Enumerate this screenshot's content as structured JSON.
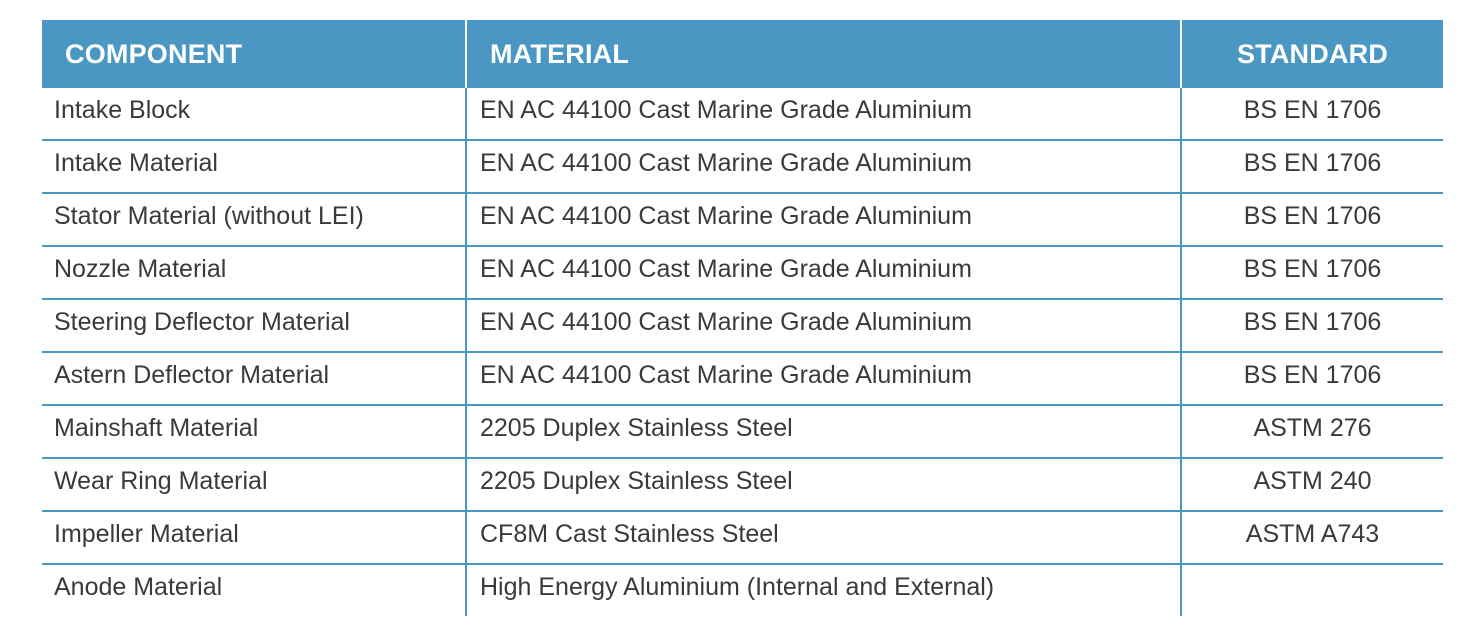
{
  "table": {
    "headers": {
      "component": "COMPONENT",
      "material": "MATERIAL",
      "standard": "STANDARD"
    },
    "rows": [
      {
        "component": "Intake Block",
        "material": "EN AC 44100 Cast Marine Grade Aluminium",
        "standard": "BS EN 1706"
      },
      {
        "component": "Intake Material",
        "material": "EN AC 44100 Cast Marine Grade Aluminium",
        "standard": "BS EN 1706"
      },
      {
        "component": "Stator Material (without LEI)",
        "material": "EN AC 44100 Cast Marine Grade Aluminium",
        "standard": "BS EN 1706"
      },
      {
        "component": "Nozzle Material",
        "material": "EN AC 44100 Cast Marine Grade Aluminium",
        "standard": "BS EN 1706"
      },
      {
        "component": "Steering Deflector Material",
        "material": "EN AC 44100 Cast Marine Grade Aluminium",
        "standard": "BS EN 1706"
      },
      {
        "component": "Astern Deflector Material",
        "material": "EN AC 44100 Cast Marine Grade Aluminium",
        "standard": "BS EN 1706"
      },
      {
        "component": "Mainshaft Material",
        "material": "2205 Duplex Stainless Steel",
        "standard": "ASTM 276"
      },
      {
        "component": "Wear Ring Material",
        "material": "2205 Duplex Stainless Steel",
        "standard": "ASTM 240"
      },
      {
        "component": "Impeller Material",
        "material": "CF8M Cast Stainless Steel",
        "standard": "ASTM A743"
      },
      {
        "component": "Anode Material",
        "material": "High Energy Aluminium (Internal and External)",
        "standard": ""
      }
    ]
  },
  "colors": {
    "header_background": "#4b97c4",
    "header_text": "#ffffff",
    "body_text": "#3a3a3a",
    "grid_lines": "#4b97c4"
  }
}
